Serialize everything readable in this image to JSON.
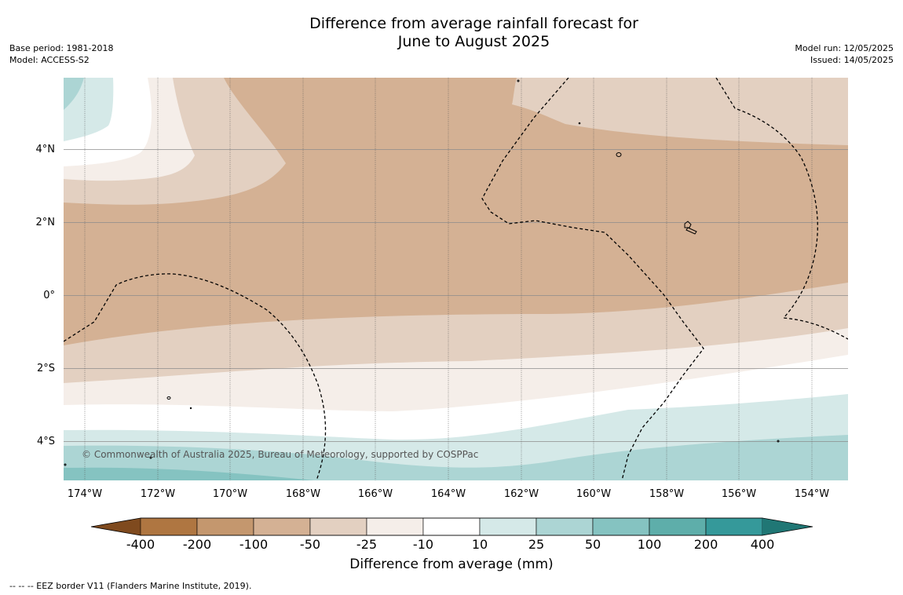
{
  "header": {
    "title_line1": "Difference from average rainfall forecast for",
    "title_line2": "June to August 2025",
    "base_period": "Base period: 1981-2018",
    "model": "Model: ACCESS-S2",
    "model_run": "Model run: 12/05/2025",
    "issued": "Issued: 14/05/2025"
  },
  "map": {
    "lat_labels": [
      "4°N",
      "2°N",
      "0°",
      "2°S",
      "4°S"
    ],
    "lon_labels": [
      "174°W",
      "172°W",
      "170°W",
      "168°W",
      "166°W",
      "164°W",
      "162°W",
      "160°W",
      "158°W",
      "156°W",
      "154°W"
    ],
    "copyright": "© Commonwealth of Australia 2025, Bureau of Meteorology, supported by COSPPac"
  },
  "legend": {
    "title": "Difference from average (mm)",
    "tick_labels": [
      "-400",
      "-200",
      "-100",
      "-50",
      "-25",
      "-10",
      "10",
      "25",
      "50",
      "100",
      "200",
      "400"
    ],
    "colors": [
      "#7f4a1e",
      "#af7641",
      "#c4976e",
      "#d4b194",
      "#e3d0c1",
      "#f5eee9",
      "#ffffff",
      "#d5e9e8",
      "#acd5d4",
      "#85c3c1",
      "#5eaeaa",
      "#35999a",
      "#207775"
    ]
  },
  "footer": {
    "eez_note": "--  --  -- EEZ border V11 (Flanders Marine Institute, 2019)."
  }
}
